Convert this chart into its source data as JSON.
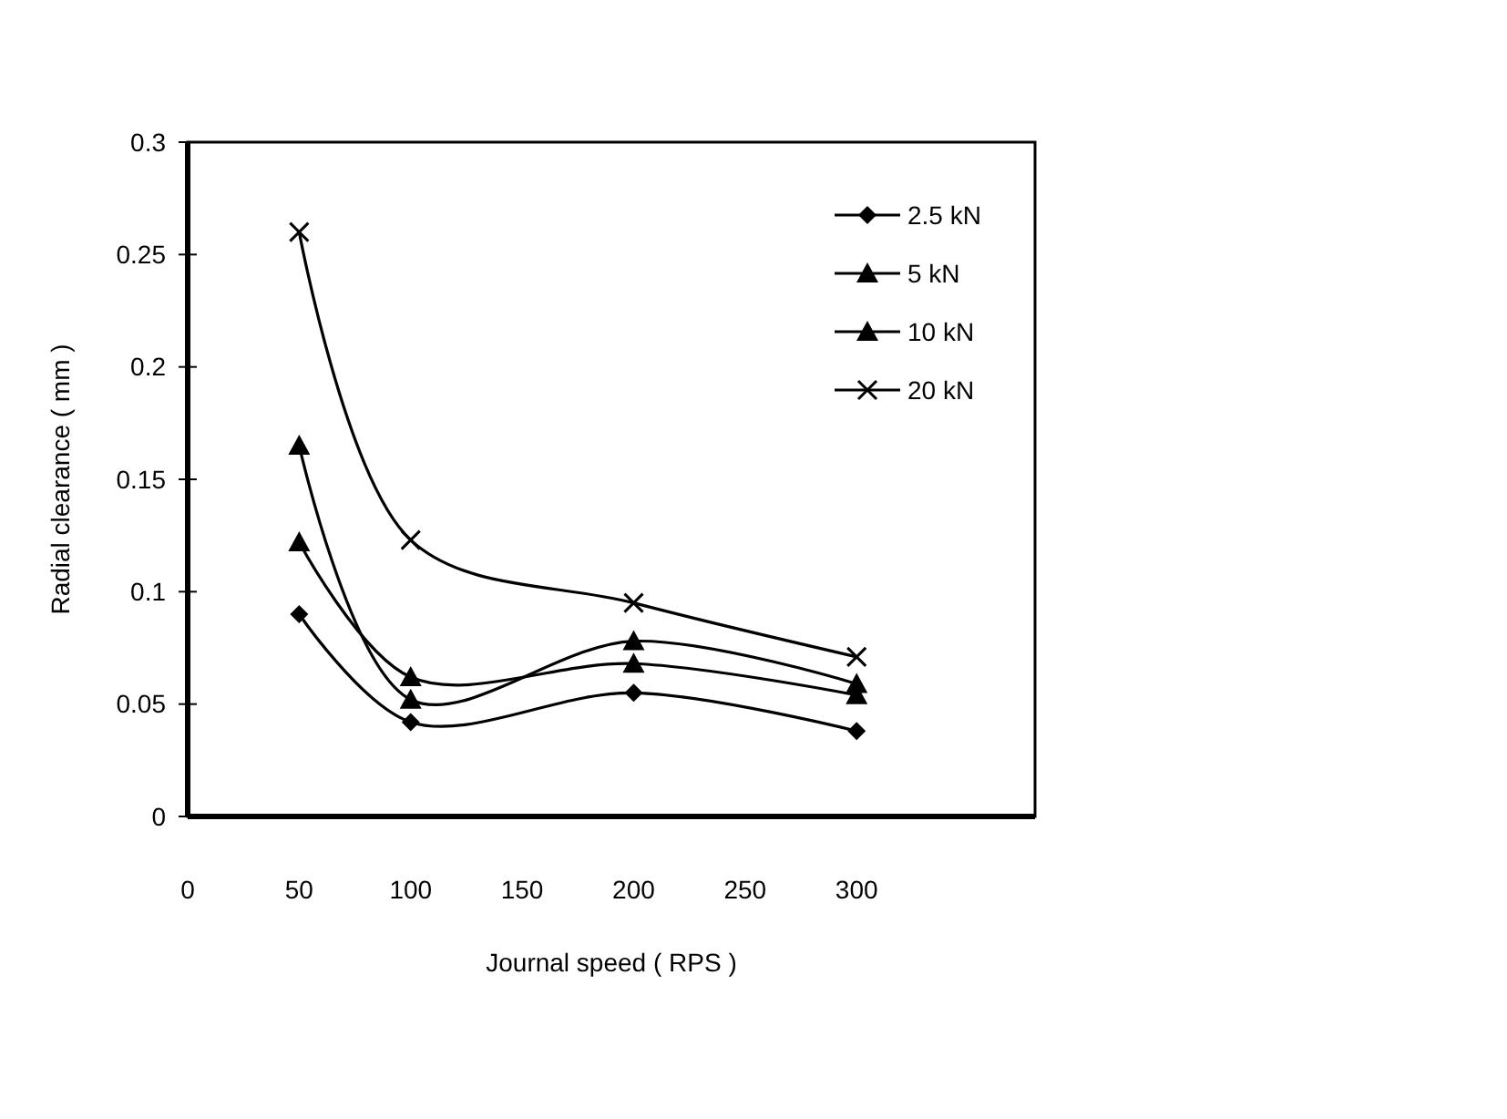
{
  "chart_data": {
    "type": "line",
    "xlabel": "Journal speed ( RPS )",
    "ylabel": "Radial clearance ( mm )",
    "x": [
      50,
      100,
      200,
      300
    ],
    "series": [
      {
        "name": "2.5 kN",
        "color": "#000000",
        "marker": "diamond",
        "values": [
          0.09,
          0.042,
          0.055,
          0.038
        ]
      },
      {
        "name": "5 kN",
        "color": "#000000",
        "marker": "triangle",
        "values": [
          0.122,
          0.062,
          0.068,
          0.054
        ]
      },
      {
        "name": "10 kN",
        "color": "#000000",
        "marker": "triangle",
        "values": [
          0.165,
          0.052,
          0.078,
          0.059
        ]
      },
      {
        "name": "20 kN",
        "color": "#000000",
        "marker": "cross",
        "values": [
          0.26,
          0.123,
          0.095,
          0.071
        ]
      }
    ],
    "xlim": [
      0,
      380
    ],
    "xticks": [
      0,
      50,
      100,
      150,
      200,
      250,
      300
    ],
    "ylim": [
      0,
      0.3
    ],
    "yticks": [
      0,
      0.05,
      0.1,
      0.15,
      0.2,
      0.25,
      0.3
    ],
    "grid": false,
    "legend": "top right"
  }
}
